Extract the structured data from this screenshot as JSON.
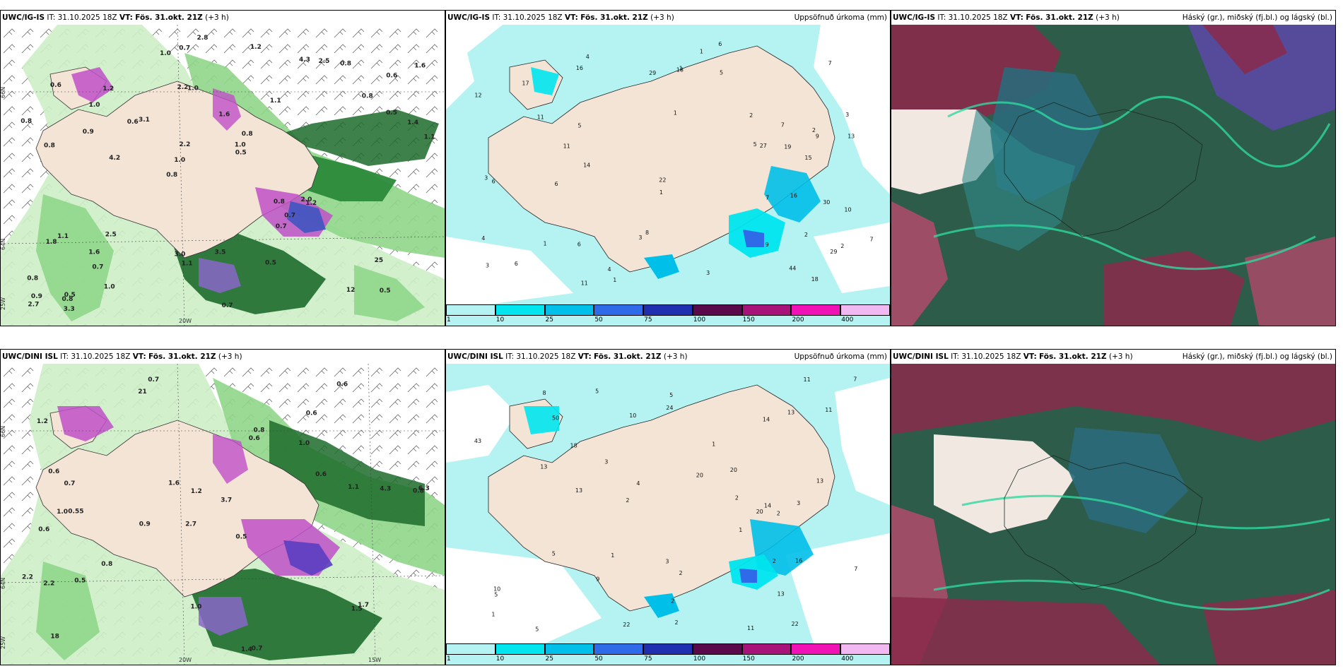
{
  "panels": {
    "tl": {
      "model": "UWC/IG-IS",
      "it_label": "IT:",
      "it_time": "31.10.2025 18Z",
      "vt_label": "VT:",
      "vt_time": "Fös. 31.okt. 21Z",
      "offset": "(+3 h)",
      "field": ""
    },
    "tm": {
      "model": "UWC/IG-IS",
      "it_label": "IT:",
      "it_time": "31.10.2025 18Z",
      "vt_label": "VT:",
      "vt_time": "Fös. 31.okt. 21Z",
      "offset": "(+3 h)",
      "field": "Uppsöfnuð úrkoma (mm)"
    },
    "tr": {
      "model": "UWC/IG-IS",
      "it_label": "IT:",
      "it_time": "31.10.2025 18Z",
      "vt_label": "VT:",
      "vt_time": "Fös. 31.okt. 21Z",
      "offset": "(+3 h)",
      "field": "Háský (gr.), miðský (fj.bl.) og lágský (bl.)"
    },
    "bl": {
      "model": "UWC/DINI ISL",
      "it_label": "IT:",
      "it_time": "31.10.2025 18Z",
      "vt_label": "VT:",
      "vt_time": "Fös. 31.okt. 21Z",
      "offset": "(+3 h)",
      "field": ""
    },
    "bm": {
      "model": "UWC/DINI ISL",
      "it_label": "IT:",
      "it_time": "31.10.2025 18Z",
      "vt_label": "VT:",
      "vt_time": "Fös. 31.okt. 21Z",
      "offset": "(+3 h)",
      "field": "Uppsöfnuð úrkoma (mm)"
    },
    "br": {
      "model": "UWC/DINI ISL",
      "it_label": "IT:",
      "it_time": "31.10.2025 18Z",
      "vt_label": "VT:",
      "vt_time": "Fös. 31.okt. 21Z",
      "offset": "(+3 h)",
      "field": "Háský (gr.), miðský (fj.bl.) og lágský (bl.)"
    }
  },
  "colorbar": {
    "labels": [
      "1",
      "10",
      "25",
      "50",
      "75",
      "100",
      "150",
      "200",
      "400"
    ],
    "colors": [
      "#b5f3f3",
      "#00e5ee",
      "#00bfe8",
      "#2f6be8",
      "#1f2fb0",
      "#5a0a4a",
      "#a8137a",
      "#f012b4",
      "#f2b8f2"
    ]
  },
  "wind_map_labels": {
    "lat_top": "66N",
    "lat_mid": "64N",
    "lon_left": "25W",
    "lon_mid": "20W",
    "lon_right": "15W",
    "tl_values": [
      "0.5",
      "0.8",
      "0.6",
      "0.8",
      "1.1",
      "0.5",
      "2.2",
      "1.6",
      "1.1",
      "3.1",
      "0.8",
      "0.7",
      "1.0",
      "0.8",
      "1.2",
      "0.6",
      "0.7",
      "1.1",
      "0.8",
      "0.5",
      "1.0",
      "3.0",
      "2.2",
      "1.2",
      "4.3",
      "2.5",
      "12",
      "25",
      "2.0",
      "0.7",
      "0.6",
      "0.9",
      "0.7",
      "1.0",
      "1.4",
      "1.0",
      "0.9",
      "1.1",
      "0.5",
      "1.8",
      "0.8",
      "1.6",
      "0.7",
      "0.5",
      "1.6",
      "3.3",
      "2.7",
      "3.5",
      "0.8",
      "2.8",
      "4.2",
      "0.8",
      "1.0",
      "2.5",
      "0.8",
      "1.2",
      "1.0"
    ],
    "bl_values": [
      "0.7",
      "0.6",
      "0.8",
      "2.7",
      "0.5",
      "0.55",
      "1.2",
      "1.0",
      "0.6",
      "0.6",
      "3.7",
      "18",
      "21",
      "0.9",
      "1.4",
      "0.7",
      "1.0",
      "0.6",
      "0.6",
      "0.8",
      "0.7",
      "1.0",
      "6.3",
      "4.3",
      "2.2",
      "0.6",
      "1.2",
      "1.1",
      "1.7",
      "2.2",
      "1.5",
      "0.8",
      "0.5",
      "1.6"
    ]
  },
  "precip_labels": {
    "tm_values": [
      "2",
      "3",
      "2",
      "1",
      "3",
      "4",
      "2",
      "6",
      "7",
      "11",
      "13",
      "12",
      "15",
      "1",
      "4",
      "17",
      "29",
      "16",
      "8",
      "9",
      "3",
      "6",
      "3",
      "5",
      "4",
      "3",
      "1",
      "5",
      "2",
      "7",
      "6",
      "9",
      "11",
      "22",
      "30",
      "44",
      "27",
      "29",
      "18",
      "14",
      "16",
      "19",
      "18",
      "11",
      "10",
      "7",
      "6",
      "6",
      "5",
      "7",
      "1",
      "1",
      "1"
    ],
    "bm_values": [
      "2",
      "3",
      "2",
      "14",
      "13",
      "16",
      "7",
      "1",
      "5",
      "3",
      "5",
      "5",
      "11",
      "10",
      "13",
      "11",
      "18",
      "8",
      "2",
      "5",
      "10",
      "20",
      "13",
      "11",
      "14",
      "13",
      "22",
      "50",
      "43",
      "20",
      "1",
      "22",
      "20",
      "24",
      "13",
      "9",
      "7",
      "2",
      "3",
      "1",
      "4",
      "2",
      "5",
      "2",
      "2",
      "1"
    ]
  }
}
